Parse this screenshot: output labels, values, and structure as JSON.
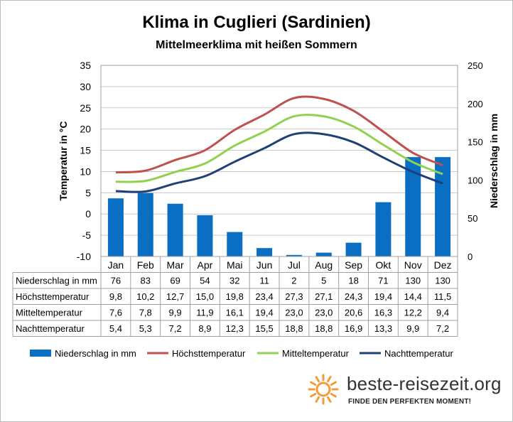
{
  "header": {
    "title": "Klima in Cuglieri (Sardinien)",
    "subtitle": "Mittelmeerklima mit heißen Sommern"
  },
  "branding": {
    "site": "beste-reisezeit.org",
    "tagline": "FINDE DEN PERFEKTEN MOMENT!",
    "logo_color": "#f39a3c"
  },
  "chart_data": {
    "type": "bar+line",
    "title": "Klima in Cuglieri (Sardinien)",
    "subtitle": "Mittelmeerklima mit heißen Sommern",
    "categories": [
      "Jan",
      "Feb",
      "Mar",
      "Apr",
      "Mai",
      "Jun",
      "Jul",
      "Aug",
      "Sep",
      "Okt",
      "Nov",
      "Dez"
    ],
    "ylabel_left": "Temperatur in °C",
    "ylabel_right": "Niederschlag in mm",
    "ylim_left": [
      -10,
      35
    ],
    "yticks_left": [
      -10,
      -5,
      0,
      5,
      10,
      15,
      20,
      25,
      30,
      35
    ],
    "ylim_right": [
      0,
      250
    ],
    "yticks_right": [
      0,
      50,
      100,
      150,
      200,
      250
    ],
    "grid": true,
    "legend_placement": "bottom",
    "series": [
      {
        "name": "Niederschlag in mm",
        "type": "bar",
        "axis": "right",
        "color": "#0a6fc2",
        "values": [
          76,
          83,
          69,
          54,
          32,
          11,
          2,
          5,
          18,
          71,
          130,
          130
        ],
        "labels": [
          "76",
          "83",
          "69",
          "54",
          "32",
          "11",
          "2",
          "5",
          "18",
          "71",
          "130",
          "130"
        ]
      },
      {
        "name": "Höchsttemperatur",
        "type": "line",
        "axis": "left",
        "color": "#c0504d",
        "values": [
          9.8,
          10.2,
          12.7,
          15.0,
          19.8,
          23.4,
          27.3,
          27.1,
          24.3,
          19.4,
          14.4,
          11.5
        ],
        "labels": [
          "9,8",
          "10,2",
          "12,7",
          "15,0",
          "19,8",
          "23,4",
          "27,3",
          "27,1",
          "24,3",
          "19,4",
          "14,4",
          "11,5"
        ]
      },
      {
        "name": "Mitteltemperatur",
        "type": "line",
        "axis": "left",
        "color": "#92d050",
        "values": [
          7.6,
          7.8,
          9.9,
          11.9,
          16.1,
          19.4,
          23.0,
          23.0,
          20.6,
          16.3,
          12.2,
          9.4
        ],
        "labels": [
          "7,6",
          "7,8",
          "9,9",
          "11,9",
          "16,1",
          "19,4",
          "23,0",
          "23,0",
          "20,6",
          "16,3",
          "12,2",
          "9,4"
        ]
      },
      {
        "name": "Nachttemperatur",
        "type": "line",
        "axis": "left",
        "color": "#1f3f77",
        "values": [
          5.4,
          5.3,
          7.2,
          8.9,
          12.3,
          15.5,
          18.8,
          18.8,
          16.9,
          13.3,
          9.9,
          7.2
        ],
        "labels": [
          "5,4",
          "5,3",
          "7,2",
          "8,9",
          "12,3",
          "15,5",
          "18,8",
          "18,8",
          "16,9",
          "13,3",
          "9,9",
          "7,2"
        ]
      }
    ]
  }
}
